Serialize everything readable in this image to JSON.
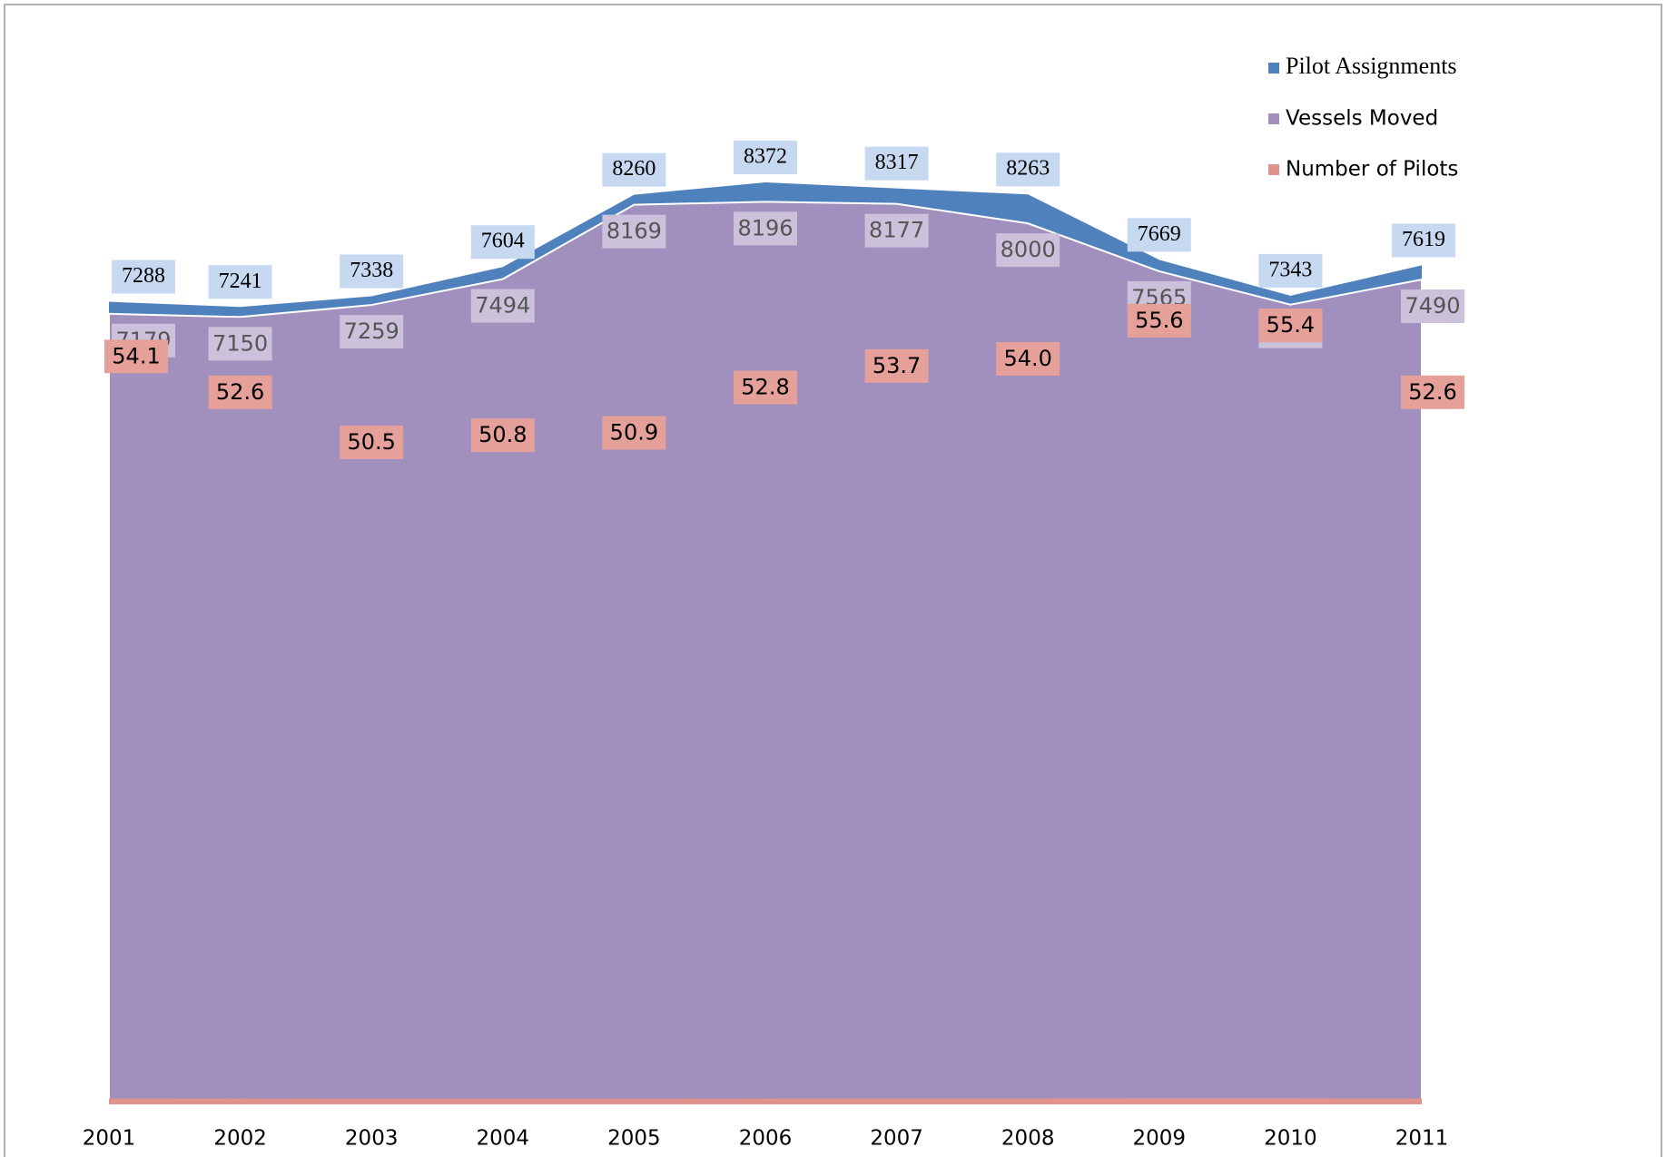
{
  "chart_data": {
    "type": "area",
    "categories": [
      "2001",
      "2002",
      "2003",
      "2004",
      "2005",
      "2006",
      "2007",
      "2008",
      "2009",
      "2010",
      "2011"
    ],
    "series": [
      {
        "name": "Pilot Assignments",
        "color": "#4f81bd",
        "values": [
          7288,
          7241,
          7338,
          7604,
          8260,
          8372,
          8317,
          8263,
          7669,
          7343,
          7619
        ]
      },
      {
        "name": "Vessels Moved",
        "color": "#a190bd",
        "values": [
          7179,
          7150,
          7259,
          7494,
          8169,
          8196,
          8177,
          8000,
          7565,
          7262,
          7490
        ]
      },
      {
        "name": "Number of Pilots",
        "color": "#e0928d",
        "values": [
          54.1,
          52.6,
          50.5,
          50.8,
          50.9,
          52.8,
          53.7,
          54.0,
          55.6,
          55.4,
          52.6
        ],
        "value_labels": [
          "54.1",
          "52.6",
          "50.5",
          "50.8",
          "50.9",
          "52.8",
          "53.7",
          "54.0",
          "55.6",
          "55.4",
          "52.6"
        ]
      }
    ],
    "legend": "top-right"
  }
}
